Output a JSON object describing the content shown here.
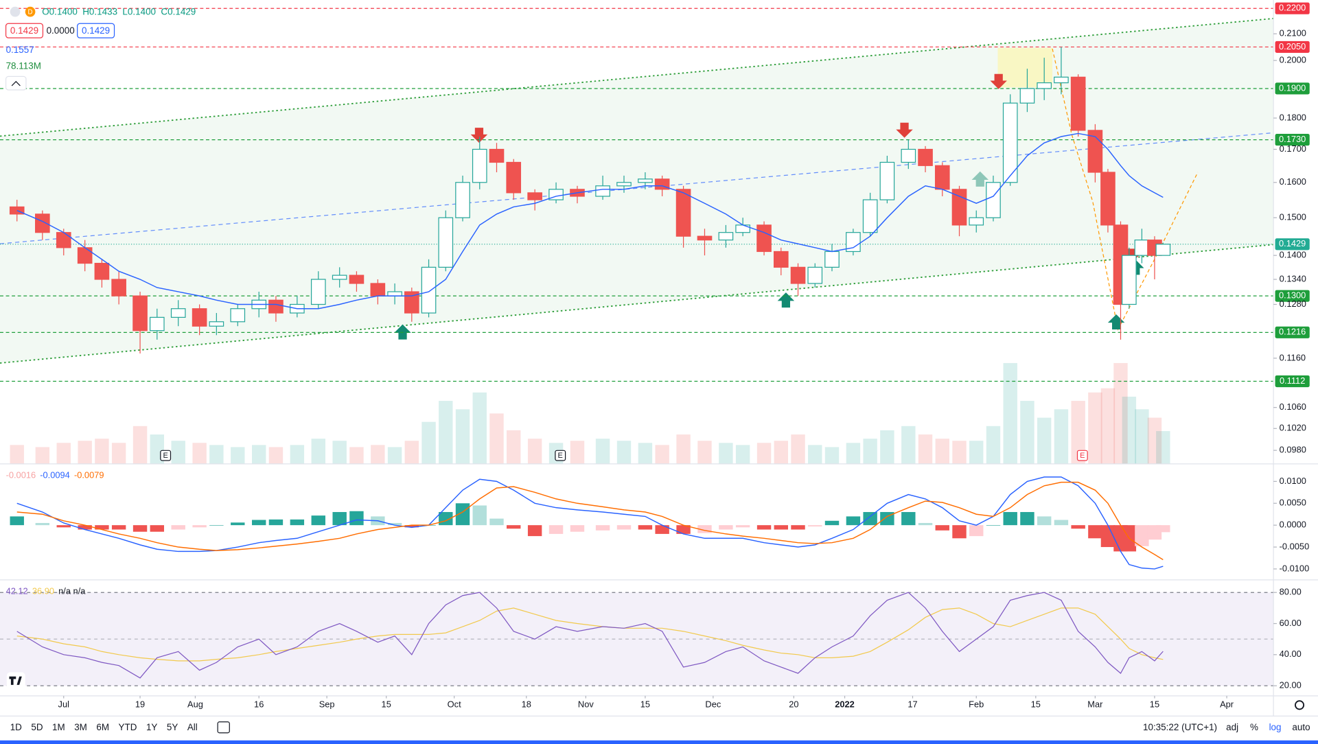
{
  "header": {
    "interval": "D",
    "ohlc": [
      "O0.1400",
      "H0.1433",
      "L0.1400",
      "C0.1429"
    ],
    "price_boxes": [
      "0.1429",
      "0.0000",
      "0.1429"
    ],
    "ma_value": "0.1557",
    "volume_value": "78.113M"
  },
  "toolbar": {
    "ranges": [
      "1D",
      "5D",
      "1M",
      "3M",
      "6M",
      "YTD",
      "1Y",
      "5Y",
      "All"
    ],
    "clock": "10:35:22 (UTC+1)",
    "options": [
      "adj",
      "%",
      "log",
      "auto"
    ]
  },
  "chart_data": [
    {
      "type": "candlestick",
      "log_scale": true,
      "x": [
        "2021-06-20",
        "2021-06-26",
        "2021-07-01",
        "2021-07-06",
        "2021-07-10",
        "2021-07-14",
        "2021-07-19",
        "2021-07-23",
        "2021-07-28",
        "2021-08-02",
        "2021-08-06",
        "2021-08-11",
        "2021-08-16",
        "2021-08-20",
        "2021-08-25",
        "2021-08-30",
        "2021-09-04",
        "2021-09-08",
        "2021-09-13",
        "2021-09-17",
        "2021-09-21",
        "2021-09-25",
        "2021-09-29",
        "2021-10-03",
        "2021-10-07",
        "2021-10-11",
        "2021-10-15",
        "2021-10-20",
        "2021-10-25",
        "2021-10-30",
        "2021-11-05",
        "2021-11-10",
        "2021-11-15",
        "2021-11-19",
        "2021-11-24",
        "2021-11-29",
        "2021-12-04",
        "2021-12-08",
        "2021-12-13",
        "2021-12-17",
        "2021-12-21",
        "2021-12-25",
        "2021-12-29",
        "2022-01-03",
        "2022-01-07",
        "2022-01-11",
        "2022-01-16",
        "2022-01-20",
        "2022-01-24",
        "2022-01-28",
        "2022-02-01",
        "2022-02-05",
        "2022-02-09",
        "2022-02-13",
        "2022-02-17",
        "2022-02-21",
        "2022-02-25",
        "2022-03-01",
        "2022-03-04",
        "2022-03-07",
        "2022-03-09",
        "2022-03-12",
        "2022-03-15",
        "2022-03-17"
      ],
      "open": [
        0.153,
        0.151,
        0.146,
        0.142,
        0.138,
        0.134,
        0.13,
        0.122,
        0.125,
        0.127,
        0.123,
        0.124,
        0.127,
        0.129,
        0.126,
        0.128,
        0.134,
        0.135,
        0.133,
        0.13,
        0.131,
        0.126,
        0.137,
        0.15,
        0.16,
        0.17,
        0.166,
        0.157,
        0.155,
        0.158,
        0.156,
        0.159,
        0.16,
        0.161,
        0.158,
        0.145,
        0.144,
        0.146,
        0.148,
        0.141,
        0.137,
        0.133,
        0.137,
        0.141,
        0.146,
        0.155,
        0.166,
        0.17,
        0.165,
        0.158,
        0.148,
        0.15,
        0.16,
        0.185,
        0.19,
        0.192,
        0.194,
        0.176,
        0.163,
        0.148,
        0.128,
        0.14,
        0.144,
        0.14
      ],
      "high": [
        0.155,
        0.152,
        0.147,
        0.144,
        0.139,
        0.136,
        0.131,
        0.127,
        0.129,
        0.128,
        0.126,
        0.128,
        0.131,
        0.13,
        0.13,
        0.136,
        0.137,
        0.136,
        0.134,
        0.133,
        0.132,
        0.139,
        0.152,
        0.162,
        0.174,
        0.172,
        0.167,
        0.158,
        0.16,
        0.159,
        0.162,
        0.162,
        0.163,
        0.162,
        0.159,
        0.147,
        0.148,
        0.15,
        0.149,
        0.142,
        0.138,
        0.138,
        0.143,
        0.147,
        0.157,
        0.168,
        0.173,
        0.171,
        0.166,
        0.159,
        0.152,
        0.162,
        0.188,
        0.197,
        0.201,
        0.205,
        0.195,
        0.178,
        0.164,
        0.149,
        0.142,
        0.147,
        0.145,
        0.1433
      ],
      "low": [
        0.149,
        0.144,
        0.14,
        0.136,
        0.132,
        0.128,
        0.117,
        0.12,
        0.123,
        0.121,
        0.121,
        0.123,
        0.125,
        0.124,
        0.125,
        0.127,
        0.132,
        0.131,
        0.128,
        0.128,
        0.124,
        0.125,
        0.136,
        0.149,
        0.158,
        0.163,
        0.155,
        0.152,
        0.154,
        0.154,
        0.155,
        0.157,
        0.158,
        0.156,
        0.142,
        0.14,
        0.142,
        0.145,
        0.14,
        0.135,
        0.13,
        0.132,
        0.136,
        0.14,
        0.145,
        0.154,
        0.164,
        0.163,
        0.156,
        0.145,
        0.146,
        0.149,
        0.159,
        0.182,
        0.186,
        0.188,
        0.174,
        0.16,
        0.146,
        0.12,
        0.127,
        0.138,
        0.134,
        0.14
      ],
      "close": [
        0.151,
        0.146,
        0.142,
        0.138,
        0.134,
        0.13,
        0.122,
        0.125,
        0.127,
        0.123,
        0.124,
        0.127,
        0.129,
        0.126,
        0.128,
        0.134,
        0.135,
        0.133,
        0.13,
        0.131,
        0.126,
        0.137,
        0.15,
        0.16,
        0.17,
        0.166,
        0.157,
        0.155,
        0.158,
        0.156,
        0.159,
        0.16,
        0.161,
        0.158,
        0.145,
        0.144,
        0.146,
        0.148,
        0.141,
        0.137,
        0.133,
        0.137,
        0.141,
        0.146,
        0.155,
        0.166,
        0.17,
        0.165,
        0.158,
        0.148,
        0.15,
        0.16,
        0.185,
        0.19,
        0.192,
        0.194,
        0.176,
        0.163,
        0.148,
        0.128,
        0.14,
        0.144,
        0.14,
        0.1429
      ],
      "up_color": "#26a69a",
      "down_color": "#ef5350",
      "ma": {
        "color": "#2962ff",
        "values": [
          0.152,
          0.149,
          0.146,
          0.142,
          0.139,
          0.136,
          0.134,
          0.132,
          0.131,
          0.13,
          0.129,
          0.128,
          0.128,
          0.128,
          0.127,
          0.127,
          0.128,
          0.129,
          0.13,
          0.13,
          0.13,
          0.131,
          0.134,
          0.141,
          0.148,
          0.151,
          0.153,
          0.154,
          0.156,
          0.157,
          0.158,
          0.158,
          0.159,
          0.159,
          0.157,
          0.154,
          0.151,
          0.148,
          0.146,
          0.144,
          0.143,
          0.142,
          0.141,
          0.142,
          0.145,
          0.15,
          0.156,
          0.159,
          0.158,
          0.156,
          0.154,
          0.156,
          0.162,
          0.168,
          0.172,
          0.174,
          0.175,
          0.174,
          0.17,
          0.165,
          0.162,
          0.159,
          0.157,
          0.1557
        ]
      },
      "volume": {
        "values": [
          45,
          40,
          50,
          55,
          60,
          50,
          90,
          70,
          55,
          50,
          45,
          40,
          45,
          40,
          45,
          60,
          55,
          40,
          45,
          40,
          55,
          100,
          150,
          130,
          170,
          120,
          80,
          60,
          50,
          55,
          60,
          55,
          50,
          45,
          70,
          55,
          50,
          45,
          50,
          55,
          70,
          45,
          40,
          50,
          60,
          80,
          90,
          70,
          60,
          55,
          55,
          90,
          240,
          150,
          110,
          130,
          150,
          170,
          180,
          240,
          160,
          130,
          110,
          78.113
        ]
      },
      "events": [
        {
          "x": "2021-07-25",
          "label": "E",
          "color": "#131722"
        },
        {
          "x": "2021-10-26",
          "label": "E",
          "color": "#131722"
        },
        {
          "x": "2022-02-26",
          "label": "E",
          "color": "#f23645"
        }
      ],
      "xlim": [
        "2021-06-16",
        "2022-04-12"
      ],
      "xticks": [
        {
          "value": "2021-07-01",
          "label": "Jul"
        },
        {
          "value": "2021-07-19",
          "label": "19"
        },
        {
          "value": "2021-08-01",
          "label": "Aug"
        },
        {
          "value": "2021-08-16",
          "label": "16"
        },
        {
          "value": "2021-09-01",
          "label": "Sep"
        },
        {
          "value": "2021-09-15",
          "label": "15"
        },
        {
          "value": "2021-10-01",
          "label": "Oct"
        },
        {
          "value": "2021-10-18",
          "label": "18"
        },
        {
          "value": "2021-11-01",
          "label": "Nov"
        },
        {
          "value": "2021-11-15",
          "label": "15"
        },
        {
          "value": "2021-12-01",
          "label": "Dec"
        },
        {
          "value": "2021-12-20",
          "label": "20"
        },
        {
          "value": "2022-01-01",
          "label": "2022"
        },
        {
          "value": "2022-01-17",
          "label": "17"
        },
        {
          "value": "2022-02-01",
          "label": "Feb"
        },
        {
          "value": "2022-02-15",
          "label": "15"
        },
        {
          "value": "2022-03-01",
          "label": "Mar"
        },
        {
          "value": "2022-03-15",
          "label": "15"
        },
        {
          "value": "2022-04-01",
          "label": "Apr"
        }
      ],
      "ylim": [
        0.0956,
        0.2234
      ],
      "yticks": [
        {
          "value": 0.21,
          "label": "0.2100"
        },
        {
          "value": 0.2,
          "label": "0.2000"
        },
        {
          "value": 0.18,
          "label": "0.1800"
        },
        {
          "value": 0.17,
          "label": "0.1700"
        },
        {
          "value": 0.16,
          "label": "0.1600"
        },
        {
          "value": 0.15,
          "label": "0.1500"
        },
        {
          "value": 0.14,
          "label": "0.1400"
        },
        {
          "value": 0.134,
          "label": "0.1340"
        },
        {
          "value": 0.128,
          "label": "0.1280"
        },
        {
          "value": 0.116,
          "label": "0.1160"
        },
        {
          "value": 0.106,
          "label": "0.1060"
        },
        {
          "value": 0.102,
          "label": "0.1020"
        },
        {
          "value": 0.098,
          "label": "0.0980"
        }
      ],
      "levels": [
        {
          "value": 0.22,
          "label": "0.2200",
          "color": "#f23645"
        },
        {
          "value": 0.205,
          "label": "0.2050",
          "color": "#f23645"
        },
        {
          "value": 0.19,
          "label": "0.1900",
          "color": "#1e9e3b"
        },
        {
          "value": 0.173,
          "label": "0.1730",
          "color": "#1e9e3b"
        },
        {
          "value": 0.13,
          "label": "0.1300",
          "color": "#1e9e3b"
        },
        {
          "value": 0.1216,
          "label": "0.1216",
          "color": "#1e9e3b"
        },
        {
          "value": 0.1112,
          "label": "0.1112",
          "color": "#1e9e3b"
        }
      ],
      "last_price": {
        "value": 0.1429,
        "label": "0.1429",
        "color": "#22ab94"
      }
    },
    {
      "type": "macd",
      "histogram": {
        "colors": [
          "#26a69a",
          "#b2dfdb",
          "#ef5350",
          "#ffcdd2"
        ],
        "values": [
          0.002,
          0.0005,
          -0.0005,
          -0.001,
          -0.001,
          -0.001,
          -0.0015,
          -0.0015,
          -0.001,
          -0.0005,
          0,
          0.0006,
          0.0012,
          0.0013,
          0.0013,
          0.0022,
          0.003,
          0.0032,
          0.002,
          0.0005,
          -0.0005,
          0,
          0.003,
          0.005,
          0.0045,
          0.0015,
          -0.0008,
          -0.0025,
          -0.002,
          -0.0015,
          -0.0012,
          -0.001,
          -0.001,
          -0.002,
          -0.002,
          -0.0018,
          -0.001,
          -0.0005,
          -0.001,
          -0.001,
          -0.001,
          -0.0003,
          0.001,
          0.002,
          0.003,
          0.003,
          0.003,
          0.0005,
          -0.0012,
          -0.003,
          -0.0025,
          0,
          0.003,
          0.003,
          0.002,
          0.0012,
          -0.0008,
          -0.003,
          -0.005,
          -0.006,
          -0.006,
          -0.0048,
          -0.0033,
          -0.0016
        ]
      },
      "macd": {
        "color": "#2962ff",
        "values": [
          0.005,
          0.003,
          0.0005,
          -0.001,
          -0.002,
          -0.003,
          -0.0045,
          -0.0055,
          -0.006,
          -0.006,
          -0.0058,
          -0.005,
          -0.004,
          -0.0035,
          -0.003,
          -0.0015,
          0,
          0.0012,
          0.001,
          0,
          -0.0005,
          0,
          0.004,
          0.008,
          0.0105,
          0.01,
          0.008,
          0.005,
          0.004,
          0.0035,
          0.003,
          0.0025,
          0.002,
          0,
          -0.002,
          -0.003,
          -0.003,
          -0.003,
          -0.004,
          -0.0045,
          -0.005,
          -0.0045,
          -0.003,
          -0.001,
          0.002,
          0.005,
          0.007,
          0.006,
          0.004,
          0.001,
          0,
          0.002,
          0.007,
          0.01,
          0.011,
          0.011,
          0.009,
          0.005,
          0,
          -0.006,
          -0.009,
          -0.0098,
          -0.01,
          -0.0094
        ]
      },
      "signal": {
        "color": "#ff6d00",
        "values": [
          0.003,
          0.0025,
          0.001,
          0,
          -0.001,
          -0.002,
          -0.003,
          -0.004,
          -0.005,
          -0.0055,
          -0.0058,
          -0.0056,
          -0.0052,
          -0.0048,
          -0.0043,
          -0.0037,
          -0.003,
          -0.002,
          -0.001,
          -0.0005,
          0,
          0,
          0.001,
          0.003,
          0.006,
          0.0085,
          0.0088,
          0.0075,
          0.006,
          0.005,
          0.0042,
          0.0035,
          0.003,
          0.002,
          0,
          -0.0012,
          -0.002,
          -0.0025,
          -0.003,
          -0.0035,
          -0.004,
          -0.0042,
          -0.004,
          -0.003,
          -0.001,
          0.002,
          0.004,
          0.0055,
          0.0052,
          0.004,
          0.0025,
          0.002,
          0.004,
          0.007,
          0.009,
          0.0098,
          0.0098,
          0.008,
          0.005,
          0,
          -0.003,
          -0.005,
          -0.0067,
          -0.0079
        ]
      },
      "legend": [
        {
          "label": "-0.0016",
          "color": "#f7a1a1"
        },
        {
          "label": "-0.0094",
          "color": "#2962ff"
        },
        {
          "label": "-0.0079",
          "color": "#ff6d00"
        }
      ],
      "ylim": [
        -0.0125,
        0.014
      ],
      "yticks": [
        {
          "value": 0.01,
          "label": "0.0100"
        },
        {
          "value": 0.005,
          "label": "0.0050"
        },
        {
          "value": 0,
          "label": "0.0000"
        },
        {
          "value": -0.005,
          "label": "-0.0050"
        },
        {
          "value": -0.01,
          "label": "-0.0100"
        }
      ]
    },
    {
      "type": "line",
      "series": [
        {
          "color": "#7e57c2",
          "values": [
            55,
            45,
            40,
            38,
            35,
            33,
            25,
            38,
            42,
            30,
            35,
            45,
            50,
            40,
            45,
            55,
            60,
            55,
            48,
            52,
            40,
            60,
            72,
            78,
            80,
            70,
            55,
            50,
            58,
            55,
            58,
            57,
            60,
            55,
            32,
            35,
            42,
            45,
            36,
            32,
            28,
            38,
            45,
            52,
            65,
            75,
            80,
            70,
            55,
            42,
            50,
            58,
            75,
            78,
            80,
            75,
            55,
            45,
            35,
            28,
            38,
            42,
            36,
            42.12
          ]
        },
        {
          "color": "#f2c94c",
          "values": [
            52,
            50,
            47,
            45,
            42,
            40,
            38,
            37,
            36,
            36,
            37,
            38,
            40,
            42,
            44,
            46,
            48,
            50,
            52,
            53,
            53,
            53,
            54,
            58,
            62,
            68,
            70,
            66,
            62,
            60,
            58,
            57,
            57,
            57,
            55,
            52,
            49,
            46,
            43,
            41,
            40,
            38,
            38,
            39,
            42,
            48,
            56,
            64,
            69,
            70,
            66,
            60,
            58,
            62,
            66,
            70,
            70,
            66,
            58,
            50,
            44,
            40,
            38,
            36.9
          ]
        }
      ],
      "legend": [
        {
          "label": "42.12",
          "color": "#7e57c2"
        },
        {
          "label": "36.90",
          "color": "#f2c94c"
        },
        {
          "label": "n/a n/a",
          "color": "#131722"
        }
      ],
      "band": [
        20,
        80
      ],
      "band_color": "#7e57c2",
      "midline": 50,
      "ylim": [
        13.5,
        88.1
      ],
      "yticks": [
        {
          "value": 80,
          "label": "80.00"
        },
        {
          "value": 60,
          "label": "60.00"
        },
        {
          "value": 40,
          "label": "40.00"
        },
        {
          "value": 20,
          "label": "20.00"
        }
      ]
    }
  ]
}
